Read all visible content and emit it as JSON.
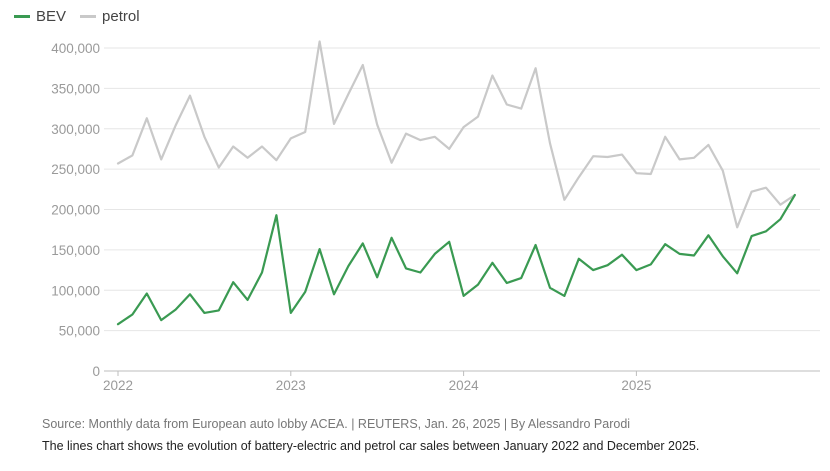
{
  "chart_data": {
    "type": "line",
    "title": "",
    "xlabel": "",
    "ylabel": "",
    "ylim": [
      0,
      400000
    ],
    "yticks": [
      0,
      50000,
      100000,
      150000,
      200000,
      250000,
      300000,
      350000,
      400000
    ],
    "ytick_labels": [
      "0",
      "50,000",
      "100,000",
      "150,000",
      "200,000",
      "250,000",
      "300,000",
      "350,000",
      "400,000"
    ],
    "xticks": [
      "2022",
      "2023",
      "2024",
      "2025"
    ],
    "x_start": "2022-01",
    "grid": "horizontal",
    "legend_position": "top-left",
    "x": [
      "2022-01",
      "2022-02",
      "2022-03",
      "2022-04",
      "2022-05",
      "2022-06",
      "2022-07",
      "2022-08",
      "2022-09",
      "2022-10",
      "2022-11",
      "2022-12",
      "2023-01",
      "2023-02",
      "2023-03",
      "2023-04",
      "2023-05",
      "2023-06",
      "2023-07",
      "2023-08",
      "2023-09",
      "2023-10",
      "2023-11",
      "2023-12",
      "2024-01",
      "2024-02",
      "2024-03",
      "2024-04",
      "2024-05",
      "2024-06",
      "2024-07",
      "2024-08",
      "2024-09",
      "2024-10",
      "2024-11",
      "2024-12",
      "2025-01",
      "2025-02",
      "2025-03",
      "2025-04",
      "2025-05",
      "2025-06",
      "2025-07",
      "2025-08",
      "2025-09",
      "2025-10",
      "2025-11",
      "2025-12"
    ],
    "series": [
      {
        "name": "BEV",
        "color": "#3a9a52",
        "values": [
          58000,
          70000,
          96000,
          63000,
          76000,
          95000,
          72000,
          75000,
          110000,
          88000,
          122000,
          193000,
          72000,
          98000,
          151000,
          95000,
          130000,
          158000,
          116000,
          165000,
          127000,
          122000,
          145000,
          160000,
          93000,
          107000,
          134000,
          109000,
          115000,
          156000,
          103000,
          93000,
          139000,
          125000,
          131000,
          144000,
          125000,
          132000,
          157000,
          145000,
          143000,
          168000,
          142000,
          121000,
          167000,
          173000,
          188000,
          218000
        ]
      },
      {
        "name": "petrol",
        "color": "#c9c9c9",
        "values": [
          257000,
          267000,
          313000,
          262000,
          304000,
          341000,
          290000,
          252000,
          278000,
          264000,
          278000,
          261000,
          288000,
          296000,
          408000,
          306000,
          343000,
          379000,
          305000,
          258000,
          294000,
          286000,
          290000,
          275000,
          302000,
          315000,
          366000,
          330000,
          325000,
          375000,
          282000,
          212000,
          240000,
          266000,
          265000,
          268000,
          245000,
          244000,
          290000,
          262000,
          264000,
          280000,
          248000,
          178000,
          222000,
          227000,
          206000,
          218000
        ]
      }
    ]
  },
  "source": "Source: Monthly data from European auto lobby ACEA. | REUTERS, Jan. 26, 2025 | By Alessandro Parodi",
  "description": "The lines chart shows the evolution of battery-electric and petrol car sales between January 2022 and December 2025."
}
